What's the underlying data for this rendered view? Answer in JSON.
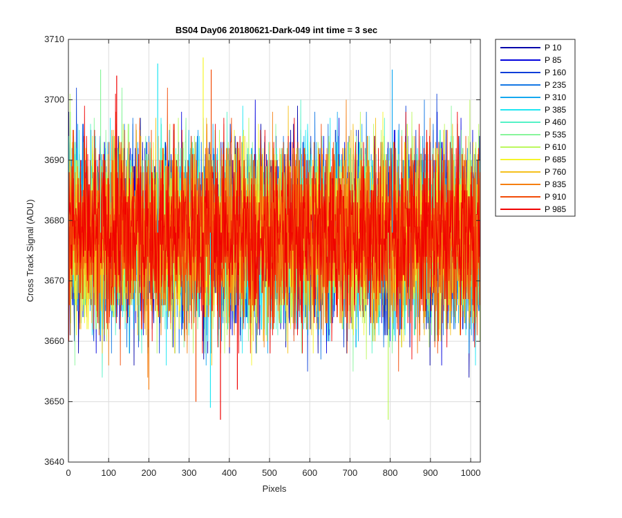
{
  "chart_data": {
    "type": "line",
    "title": "BS04 Day06 20180621-Dark-049 int time = 3 sec",
    "xlabel": "Pixels",
    "ylabel": "Cross Track Signal (ADU)",
    "xlim": [
      0,
      1024
    ],
    "ylim": [
      3640,
      3710
    ],
    "xticks": [
      0,
      100,
      200,
      300,
      400,
      500,
      600,
      700,
      800,
      900,
      1000
    ],
    "yticks": [
      3640,
      3650,
      3660,
      3670,
      3680,
      3690,
      3700,
      3710
    ],
    "grid": true,
    "legend_position": "outside-top-right",
    "n_points": 1024,
    "signal": {
      "mean": 3678,
      "typical_min": 3655,
      "typical_max": 3700
    },
    "series": [
      {
        "name": "P 10",
        "color": "#0000AA"
      },
      {
        "name": "P 85",
        "color": "#0000DD"
      },
      {
        "name": "P 160",
        "color": "#0A3ED8"
      },
      {
        "name": "P 235",
        "color": "#1276E4"
      },
      {
        "name": "P 310",
        "color": "#14A8F0"
      },
      {
        "name": "P 385",
        "color": "#1DE6F2"
      },
      {
        "name": "P 460",
        "color": "#52F2C6"
      },
      {
        "name": "P 535",
        "color": "#86F59A"
      },
      {
        "name": "P 610",
        "color": "#BBF85C"
      },
      {
        "name": "P 685",
        "color": "#F5F52A"
      },
      {
        "name": "P 760",
        "color": "#F5C01A"
      },
      {
        "name": "P 835",
        "color": "#F57E10"
      },
      {
        "name": "P 910",
        "color": "#F24A06"
      },
      {
        "name": "P 985",
        "color": "#F00000"
      }
    ],
    "extreme_points": [
      {
        "series": "P 685",
        "x": 335,
        "y": 3707
      },
      {
        "series": "P 985",
        "x": 120,
        "y": 3704
      },
      {
        "series": "P 910",
        "x": 355,
        "y": 3705
      },
      {
        "series": "P 385",
        "x": 222,
        "y": 3706
      },
      {
        "series": "P 535",
        "x": 80,
        "y": 3705
      },
      {
        "series": "P 310",
        "x": 805,
        "y": 3705
      },
      {
        "series": "P 985",
        "x": 378,
        "y": 3647
      },
      {
        "series": "P 610",
        "x": 795,
        "y": 3647
      },
      {
        "series": "P 385",
        "x": 353,
        "y": 3649
      },
      {
        "series": "P 910",
        "x": 317,
        "y": 3650
      },
      {
        "series": "P 835",
        "x": 200,
        "y": 3652
      },
      {
        "series": "P 985",
        "x": 420,
        "y": 3652
      }
    ]
  }
}
